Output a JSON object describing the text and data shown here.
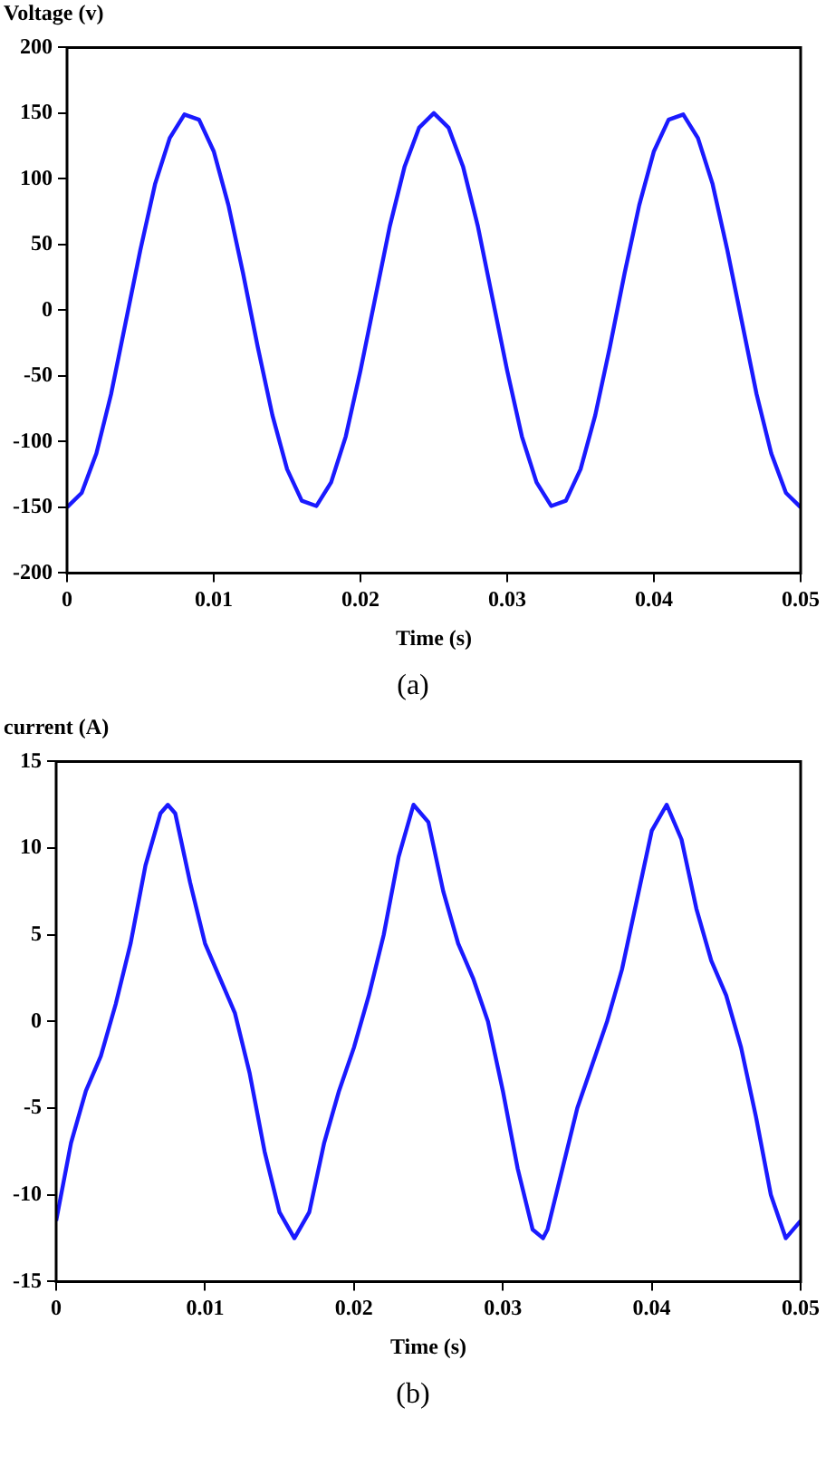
{
  "chart_data": [
    {
      "type": "line",
      "ylabel": "Voltage (v)",
      "xlabel": "Time (s)",
      "annotations": [
        "(a)"
      ],
      "xlim": [
        0,
        0.05
      ],
      "xticks": [
        0,
        0.01,
        0.02,
        0.03,
        0.04,
        0.05
      ],
      "ylim": [
        -200,
        200
      ],
      "yticks": [
        -200,
        -150,
        -100,
        -50,
        0,
        50,
        100,
        150,
        200
      ],
      "grid": false,
      "legend": false,
      "marker": "none",
      "line_style": "solid",
      "x": [
        0,
        0.001,
        0.002,
        0.003,
        0.004,
        0.005,
        0.006,
        0.007,
        0.008,
        0.009,
        0.01,
        0.011,
        0.012,
        0.013,
        0.014,
        0.015,
        0.016,
        0.017,
        0.018,
        0.019,
        0.02,
        0.021,
        0.022,
        0.023,
        0.024,
        0.025,
        0.026,
        0.027,
        0.028,
        0.029,
        0.03,
        0.031,
        0.032,
        0.033,
        0.034,
        0.035,
        0.036,
        0.037,
        0.038,
        0.039,
        0.04,
        0.041,
        0.042,
        0.043,
        0.044,
        0.045,
        0.046,
        0.047,
        0.048,
        0.049,
        0.05
      ],
      "series": [
        {
          "color": "#1a1aff",
          "values": [
            -150,
            -139,
            -109,
            -64,
            -9,
            46,
            96,
            131,
            149,
            145,
            121,
            80,
            28,
            -28,
            -80,
            -121,
            -145,
            -149,
            -131,
            -96,
            -46,
            9,
            64,
            109,
            139,
            150,
            139,
            109,
            64,
            9,
            -46,
            -96,
            -131,
            -149,
            -145,
            -121,
            -80,
            -28,
            28,
            80,
            121,
            145,
            149,
            131,
            96,
            46,
            -9,
            -64,
            -109,
            -139,
            -150
          ]
        }
      ]
    },
    {
      "type": "line",
      "ylabel": "current (A)",
      "xlabel": "Time (s)",
      "annotations": [
        "(b)"
      ],
      "xlim": [
        0,
        0.05
      ],
      "xticks": [
        0,
        0.01,
        0.02,
        0.03,
        0.04,
        0.05
      ],
      "ylim": [
        -15,
        15
      ],
      "yticks": [
        -15,
        -10,
        -5,
        0,
        5,
        10,
        15
      ],
      "grid": false,
      "legend": false,
      "marker": "none",
      "line_style": "solid",
      "x": [
        0,
        0.001,
        0.002,
        0.003,
        0.004,
        0.005,
        0.006,
        0.007,
        0.0075,
        0.008,
        0.009,
        0.01,
        0.011,
        0.012,
        0.013,
        0.014,
        0.015,
        0.016,
        0.017,
        0.018,
        0.019,
        0.02,
        0.021,
        0.022,
        0.023,
        0.024,
        0.025,
        0.026,
        0.027,
        0.028,
        0.029,
        0.03,
        0.031,
        0.032,
        0.0327,
        0.033,
        0.034,
        0.035,
        0.036,
        0.037,
        0.038,
        0.039,
        0.04,
        0.041,
        0.042,
        0.043,
        0.044,
        0.045,
        0.046,
        0.047,
        0.048,
        0.049,
        0.05
      ],
      "series": [
        {
          "color": "#1a1aff",
          "values": [
            -11.5,
            -7,
            -4,
            -2,
            1,
            4.5,
            9,
            12,
            12.5,
            12,
            8,
            4.5,
            2.5,
            0.5,
            -3,
            -7.5,
            -11,
            -12.5,
            -11,
            -7,
            -4,
            -1.5,
            1.5,
            5,
            9.5,
            12.5,
            11.5,
            7.5,
            4.5,
            2.5,
            0,
            -4,
            -8.5,
            -12,
            -12.5,
            -12,
            -8.5,
            -5,
            -2.5,
            0,
            3,
            7,
            11,
            12.5,
            10.5,
            6.5,
            3.5,
            1.5,
            -1.5,
            -5.5,
            -10,
            -12.5,
            -11.5
          ]
        }
      ]
    }
  ]
}
